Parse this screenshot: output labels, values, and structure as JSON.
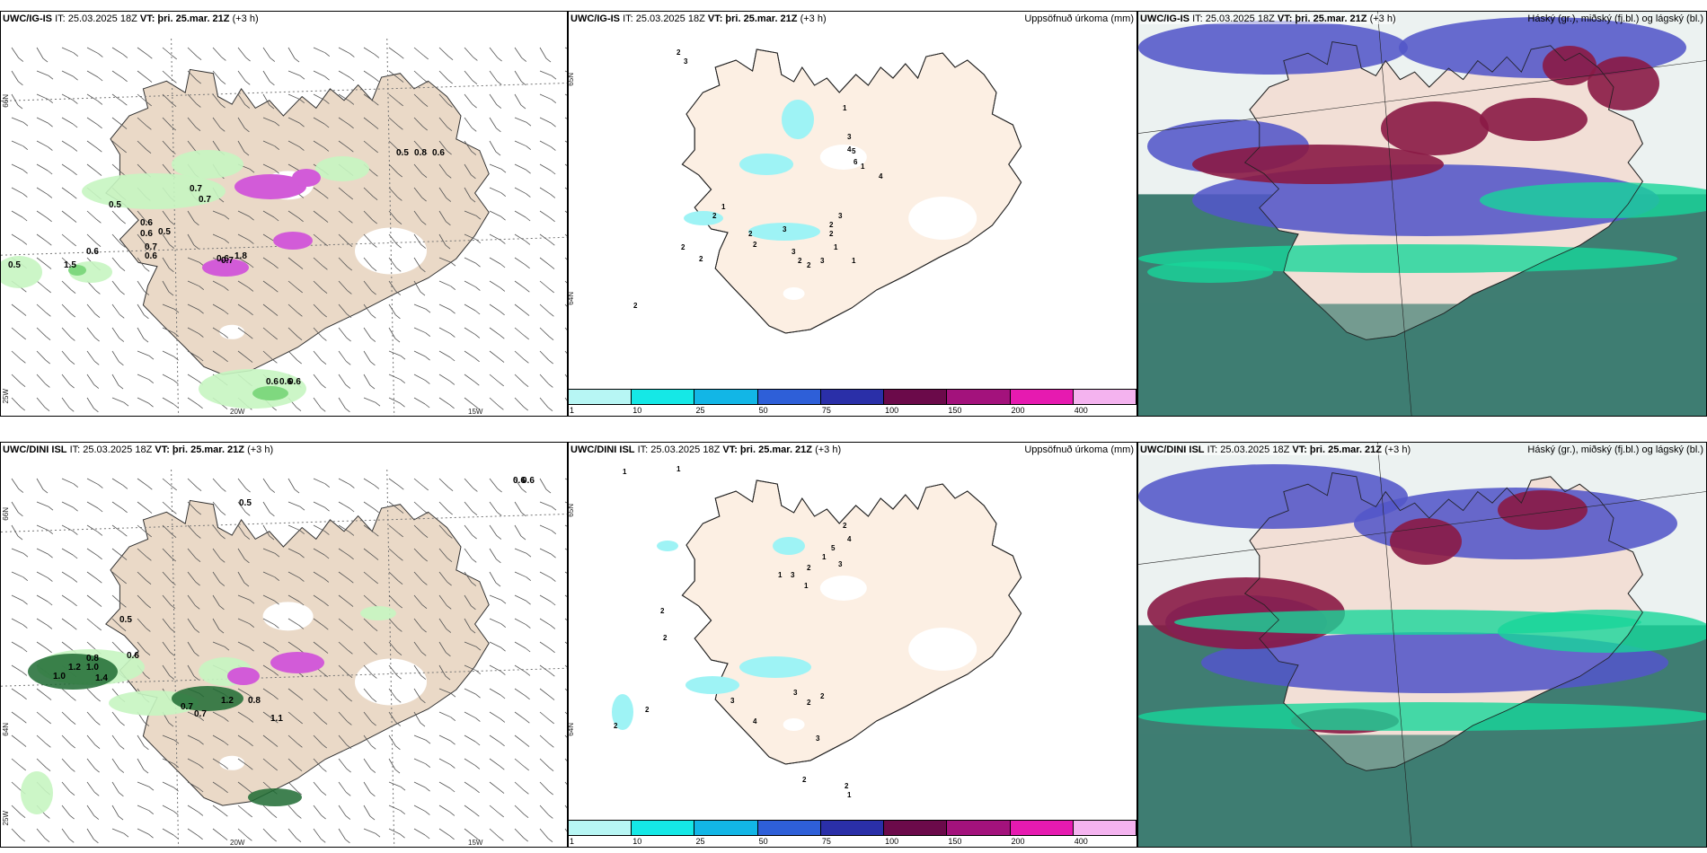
{
  "rows": [
    {
      "model_bold": "UWC/IG-IS",
      "init": "IT: 25.03.2025 18Z",
      "valid_bold": "VT: þri. 25.mar. 21Z",
      "lead": "(+3 h)",
      "left_values": [
        "0.5",
        "0.8",
        "0.6",
        "0.5",
        "0.7",
        "0.6",
        "0.7",
        "0.6",
        "0.5",
        "0.7",
        "0.6",
        "0.6",
        "0.7",
        "0.5",
        "1.5",
        "0.6",
        "1.8",
        "0.6",
        "0.6",
        "0.6"
      ],
      "mid_values": [
        "2",
        "3",
        "1",
        "3",
        "4",
        "5",
        "6",
        "1",
        "4",
        "3",
        "2",
        "2",
        "1",
        "2",
        "2",
        "2",
        "2",
        "3",
        "3",
        "2",
        "2",
        "3",
        "2",
        "1",
        "1",
        "2"
      ]
    },
    {
      "model_bold": "UWC/DINI ISL",
      "init": "IT: 25.03.2025 18Z",
      "valid_bold": "VT: þri. 25.mar. 21Z",
      "lead": "(+3 h)",
      "left_values": [
        "0.6",
        "0.6",
        "0.5",
        "0.5",
        "0.6",
        "1.0",
        "0.8",
        "1.0",
        "1.2",
        "1.4",
        "0.7",
        "0.7",
        "1.2",
        "0.8",
        "1.1"
      ],
      "mid_values": [
        "1",
        "1",
        "2",
        "4",
        "5",
        "1",
        "3",
        "1",
        "2",
        "3",
        "1",
        "2",
        "2",
        "2",
        "2",
        "4",
        "3",
        "3",
        "2",
        "2",
        "3",
        "2",
        "1",
        "2"
      ]
    }
  ],
  "precip_label": "Uppsöfnuð úrkoma (mm)",
  "cloud_label": "Háský (gr.), miðský (fj.bl.) og lágský (bl.)",
  "colorbar": {
    "ticks": [
      "1",
      "10",
      "25",
      "50",
      "75",
      "100",
      "150",
      "200",
      "400"
    ],
    "colors": [
      "#b7f6f4",
      "#15e8e6",
      "#12b6e6",
      "#2e5fd8",
      "#2a2fa8",
      "#6b0a4a",
      "#a3127c",
      "#e61ab0",
      "#f4b3ef"
    ]
  },
  "axes": {
    "lat_top": [
      "66N",
      "65N"
    ],
    "lat_right_top": [
      "65N",
      "64N"
    ],
    "lat_bottom": [
      "66N",
      "64N"
    ],
    "lon": [
      "25W",
      "20W",
      "15W"
    ]
  },
  "colors": {
    "land": "#ead9c7",
    "land_mid": "#fcefe3",
    "precip_light": "#c6f5c1",
    "precip_green": "#7fd87f",
    "precip_dark": "#1f6b32",
    "snow_magenta": "#d25bd8",
    "mid_precip": "#9ef3f5",
    "cloud_ocean": "#3f7d72",
    "cloud_high": "#5357c8",
    "cloud_mid": "#8a1a45",
    "cloud_low": "#18d69a"
  }
}
